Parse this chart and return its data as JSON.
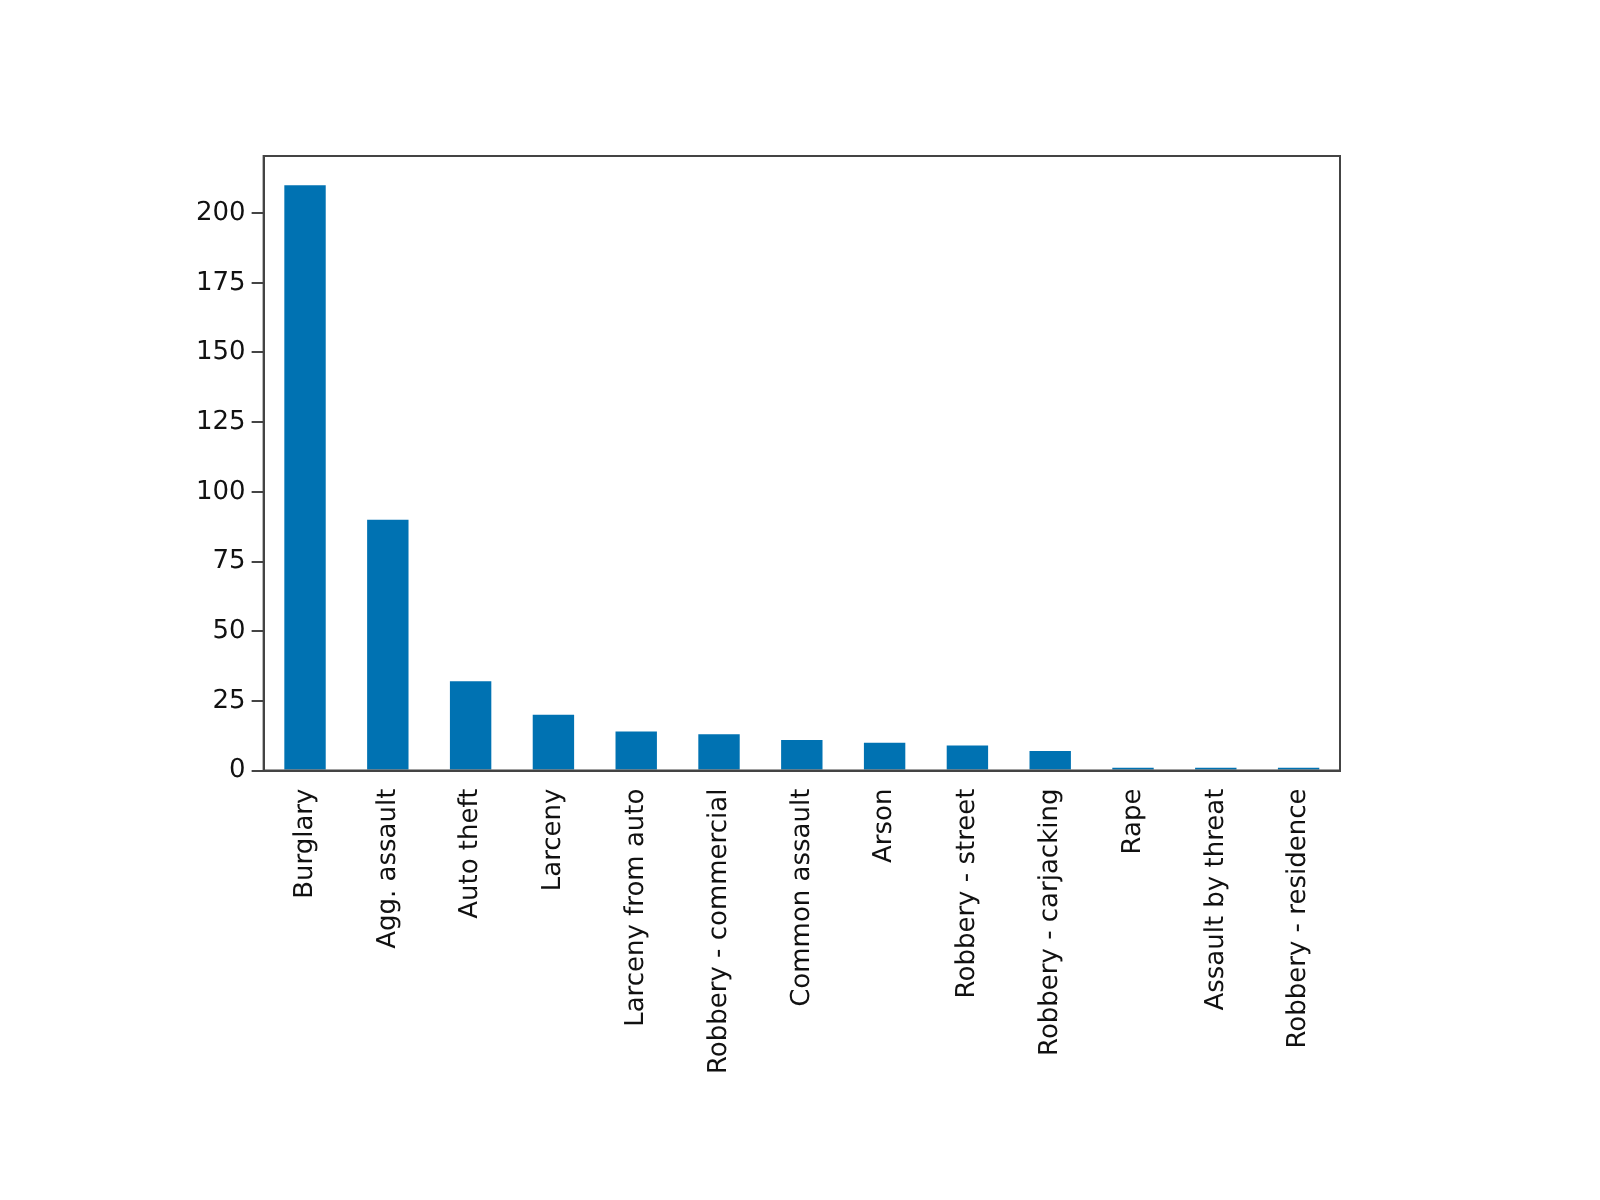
{
  "chart_data": {
    "type": "bar",
    "categories": [
      "Burglary",
      "Agg. assault",
      "Auto theft",
      "Larceny",
      "Larceny from auto",
      "Robbery - commercial",
      "Common assault",
      "Arson",
      "Robbery - street",
      "Robbery - carjacking",
      "Rape",
      "Assault by threat",
      "Robbery - residence"
    ],
    "values": [
      210,
      90,
      32,
      20,
      14,
      13,
      11,
      10,
      9,
      7,
      1,
      1,
      1
    ],
    "color": "#0072b2",
    "ylim": [
      0,
      220.5
    ],
    "yticks": [
      0,
      25,
      50,
      75,
      100,
      125,
      150,
      175,
      200
    ],
    "grid": false,
    "legend": false
  }
}
